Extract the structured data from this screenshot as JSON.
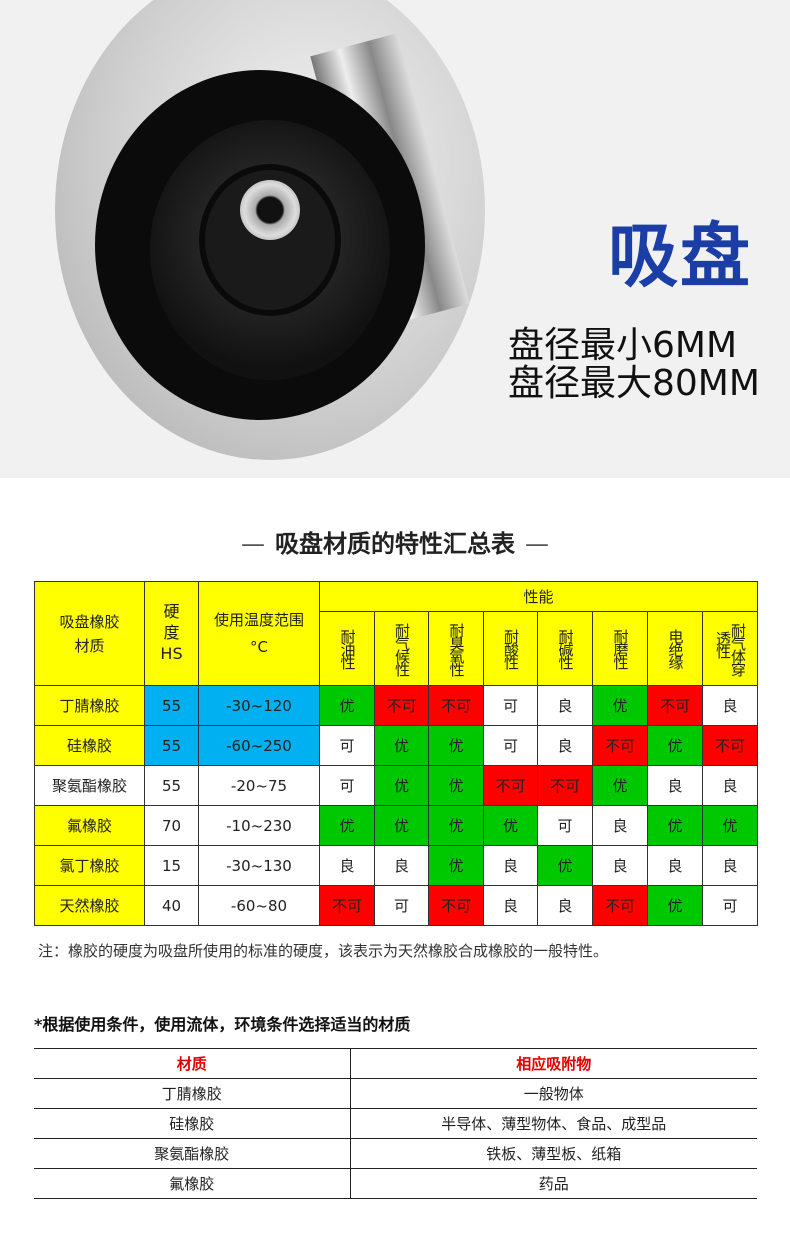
{
  "hero": {
    "title": "吸盘",
    "specs": [
      "盘径最小6MM",
      "盘径最大80MM"
    ]
  },
  "section_title": "吸盘材质的特性汇总表",
  "colors": {
    "yellow": "#ffff00",
    "blue": "#00b0f0",
    "green": "#00c800",
    "red": "#ff0000",
    "title_blue": "#1b3da6"
  },
  "table": {
    "headers": {
      "material": [
        "吸盘橡胶",
        "材质"
      ],
      "hardness": [
        "硬度",
        "HS"
      ],
      "temp": [
        "使用温度范围",
        "°C"
      ],
      "performance": "性能",
      "props": [
        "耐油性",
        "耐气候性",
        "耐臭氧性",
        "耐酸性",
        "耐碱性",
        "耐磨性",
        "电绝缘",
        "耐气体穿透性"
      ]
    },
    "rows": [
      {
        "material": "丁腈橡胶",
        "hs": "55",
        "temp": "-30~120",
        "mat_color": "y",
        "hs_color": "b",
        "vals": [
          "优",
          "不可",
          "不可",
          "可",
          "良",
          "优",
          "不可",
          "良"
        ],
        "cols": [
          "g",
          "r",
          "r",
          "w",
          "w",
          "g",
          "r",
          "w"
        ]
      },
      {
        "material": "硅橡胶",
        "hs": "55",
        "temp": "-60~250",
        "mat_color": "y",
        "hs_color": "b",
        "vals": [
          "可",
          "优",
          "优",
          "可",
          "良",
          "不可",
          "优",
          "不可"
        ],
        "cols": [
          "w",
          "g",
          "g",
          "w",
          "w",
          "r",
          "g",
          "r"
        ]
      },
      {
        "material": "聚氨酯橡胶",
        "hs": "55",
        "temp": "-20~75",
        "mat_color": "w",
        "hs_color": "w",
        "vals": [
          "可",
          "优",
          "优",
          "不可",
          "不可",
          "优",
          "良",
          "良"
        ],
        "cols": [
          "w",
          "g",
          "g",
          "r",
          "r",
          "g",
          "w",
          "w"
        ]
      },
      {
        "material": "氟橡胶",
        "hs": "70",
        "temp": "-10~230",
        "mat_color": "y",
        "hs_color": "w",
        "vals": [
          "优",
          "优",
          "优",
          "优",
          "可",
          "良",
          "优",
          "优"
        ],
        "cols": [
          "g",
          "g",
          "g",
          "g",
          "w",
          "w",
          "g",
          "g"
        ]
      },
      {
        "material": "氯丁橡胶",
        "hs": "15",
        "temp": "-30~130",
        "mat_color": "y",
        "hs_color": "w",
        "vals": [
          "良",
          "良",
          "优",
          "良",
          "优",
          "良",
          "良",
          "良"
        ],
        "cols": [
          "w",
          "w",
          "g",
          "w",
          "g",
          "w",
          "w",
          "w"
        ]
      },
      {
        "material": "天然橡胶",
        "hs": "40",
        "temp": "-60~80",
        "mat_color": "y",
        "hs_color": "w",
        "vals": [
          "不可",
          "可",
          "不可",
          "良",
          "良",
          "不可",
          "优",
          "可"
        ],
        "cols": [
          "r",
          "w",
          "r",
          "w",
          "w",
          "r",
          "g",
          "w"
        ]
      }
    ]
  },
  "note": "注：橡胶的硬度为吸盘所使用的标准的硬度，该表示为天然橡胶合成橡胶的一般特性。",
  "usage": {
    "subtitle": "*根据使用条件，使用流体，环境条件选择适当的材质",
    "headers": [
      "材质",
      "相应吸附物"
    ],
    "rows": [
      [
        "丁腈橡胶",
        "一般物体"
      ],
      [
        "硅橡胶",
        "半导体、薄型物体、食品、成型品"
      ],
      [
        "聚氨酯橡胶",
        "铁板、薄型板、纸箱"
      ],
      [
        "氟橡胶",
        "药品"
      ]
    ]
  }
}
